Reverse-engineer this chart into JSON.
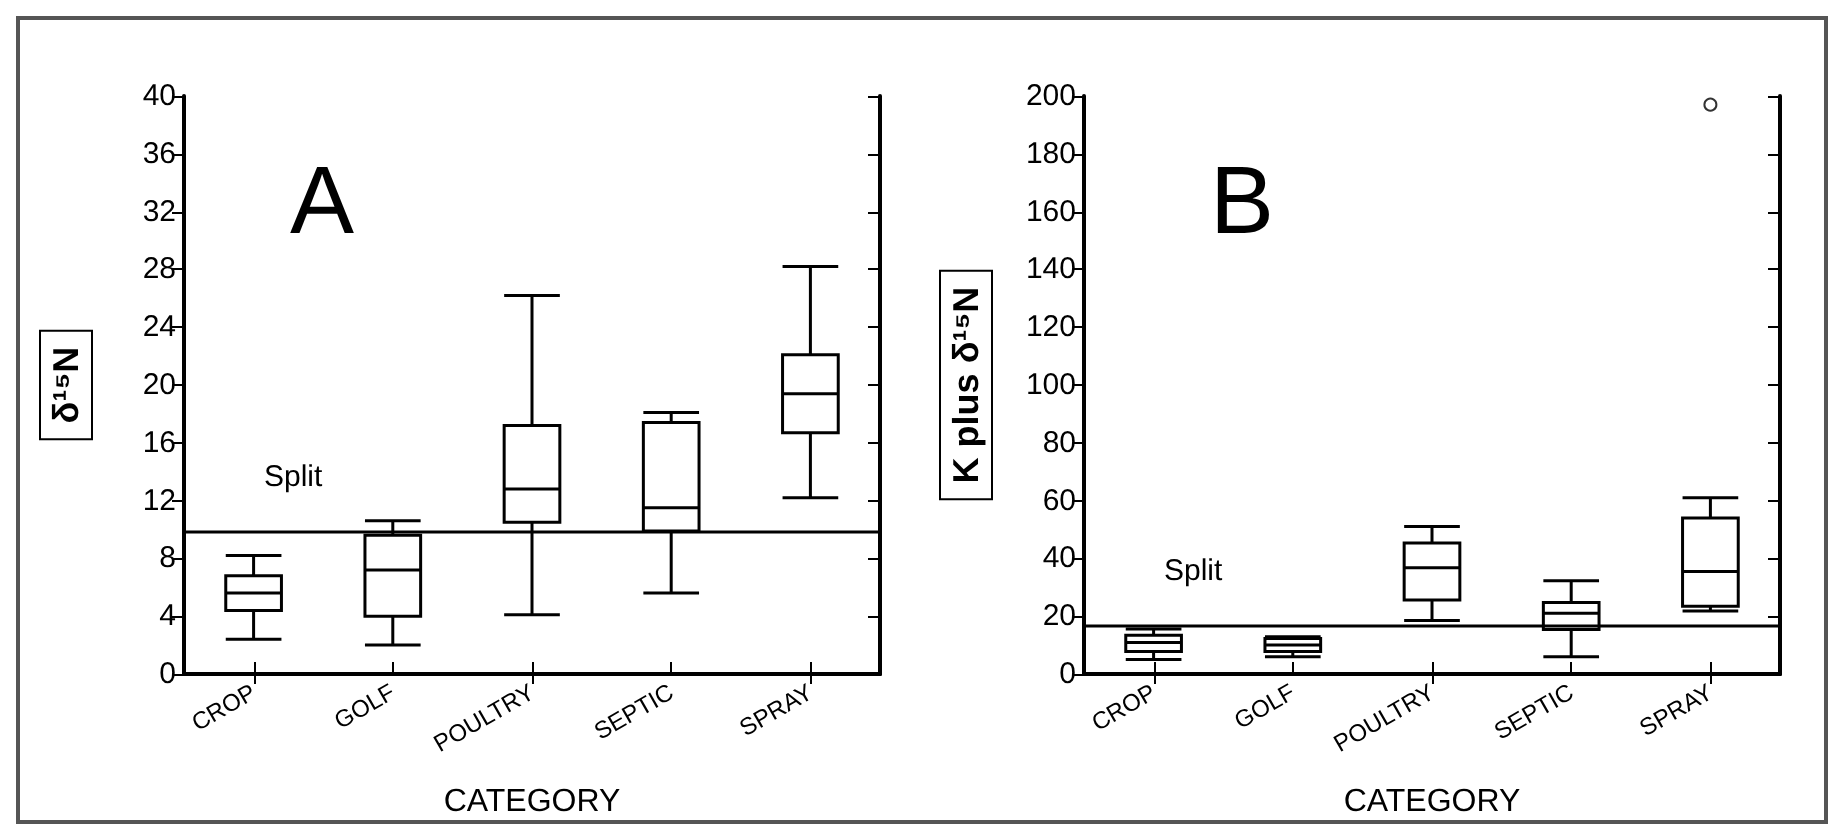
{
  "chart_data": [
    {
      "type": "box",
      "title": "A",
      "xlabel": "CATEGORY",
      "ylabel": "δ¹⁵N",
      "categories": [
        "CROP",
        "GOLF",
        "POULTRY",
        "SEPTIC",
        "SPRAY"
      ],
      "ylim": [
        0,
        40
      ],
      "yticks": [
        0,
        4,
        8,
        12,
        16,
        20,
        24,
        28,
        32,
        36,
        40
      ],
      "boxes": [
        {
          "low": 2.4,
          "q1": 4.4,
          "median": 5.6,
          "q3": 6.8,
          "high": 8.2
        },
        {
          "low": 2,
          "q1": 4,
          "median": 7.2,
          "q3": 9.6,
          "high": 10.6
        },
        {
          "low": 4.1,
          "q1": 10.5,
          "median": 12.8,
          "q3": 17.2,
          "high": 26.2
        },
        {
          "low": 5.6,
          "q1": 9.9,
          "median": 11.5,
          "q3": 17.4,
          "high": 18.1
        },
        {
          "low": 12.2,
          "q1": 16.7,
          "median": 19.4,
          "q3": 22.1,
          "high": 28.2
        }
      ],
      "ref_lines": [
        {
          "axis": "y",
          "value": 9.8,
          "label": "Split",
          "color": "#000000"
        }
      ]
    },
    {
      "type": "box",
      "title": "B",
      "xlabel": "CATEGORY",
      "ylabel": "K plus δ¹⁵N",
      "categories": [
        "CROP",
        "GOLF",
        "POULTRY",
        "SEPTIC",
        "SPRAY"
      ],
      "ylim": [
        0,
        200
      ],
      "yticks": [
        0,
        20,
        40,
        60,
        80,
        100,
        120,
        140,
        160,
        180,
        200
      ],
      "boxes": [
        {
          "low": 5,
          "q1": 7.8,
          "median": 10.9,
          "q3": 13.4,
          "high": 15.6
        },
        {
          "low": 6,
          "q1": 7.8,
          "median": 10,
          "q3": 12.3,
          "high": 12.9
        },
        {
          "low": 18.5,
          "q1": 25.6,
          "median": 36.8,
          "q3": 45.3,
          "high": 51
        },
        {
          "low": 6,
          "q1": 15.4,
          "median": 21,
          "q3": 24.7,
          "high": 32.3
        },
        {
          "low": 21.8,
          "q1": 23.4,
          "median": 35.5,
          "q3": 54,
          "high": 61,
          "outliers": [
            197
          ]
        }
      ],
      "ref_lines": [
        {
          "axis": "y",
          "value": 16.7,
          "label": "Split",
          "color": "#000000"
        }
      ]
    }
  ]
}
